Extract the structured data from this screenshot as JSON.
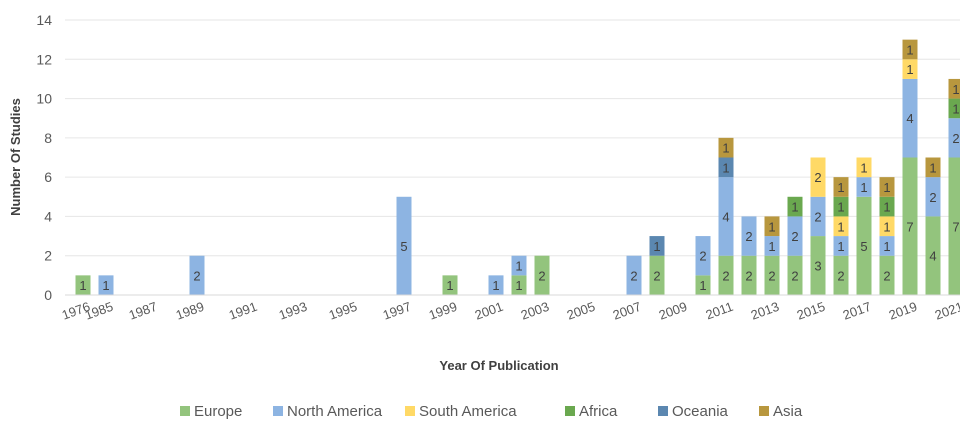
{
  "chart_data": {
    "type": "bar",
    "stacked": true,
    "title": "",
    "xlabel": "Year Of Publication",
    "ylabel": "Number Of Studies",
    "ylim": [
      0,
      14
    ],
    "yticks": [
      0,
      2,
      4,
      6,
      8,
      10,
      12,
      14
    ],
    "grid": true,
    "legend_position": "bottom",
    "categories": [
      "1976",
      "1985",
      "1987",
      "1989",
      "1991",
      "1993",
      "1995",
      "1997",
      "1999",
      "2001",
      "2002",
      "2003",
      "2005",
      "2007",
      "2008",
      "2009",
      "2010",
      "2011",
      "2012",
      "2013",
      "2014",
      "2015",
      "2016",
      "2017",
      "2018",
      "2019",
      "2020",
      "2021"
    ],
    "x_tick_labels": [
      "1976",
      "1985",
      "1987",
      "1989",
      "1991",
      "1993",
      "1995",
      "1997",
      "1999",
      "2001",
      "2003",
      "2005",
      "2007",
      "2009",
      "2011",
      "2013",
      "2015",
      "2017",
      "2019",
      "2021"
    ],
    "series": [
      {
        "name": "Europe",
        "color": "#93c47d",
        "values": [
          1,
          0,
          0,
          0,
          0,
          0,
          0,
          0,
          1,
          0,
          1,
          2,
          0,
          0,
          2,
          0,
          1,
          2,
          2,
          2,
          2,
          3,
          2,
          5,
          2,
          7,
          4,
          7
        ]
      },
      {
        "name": "North America",
        "color": "#8db4e2",
        "values": [
          0,
          1,
          0,
          2,
          0,
          0,
          0,
          5,
          0,
          1,
          1,
          0,
          0,
          2,
          0,
          0,
          2,
          4,
          2,
          1,
          2,
          2,
          1,
          1,
          1,
          4,
          2,
          2
        ]
      },
      {
        "name": "South America",
        "color": "#ffd966",
        "values": [
          0,
          0,
          0,
          0,
          0,
          0,
          0,
          0,
          0,
          0,
          0,
          0,
          0,
          0,
          0,
          0,
          0,
          0,
          0,
          0,
          0,
          2,
          1,
          1,
          1,
          1,
          0,
          0
        ]
      },
      {
        "name": "Africa",
        "color": "#6aa84f",
        "values": [
          0,
          0,
          0,
          0,
          0,
          0,
          0,
          0,
          0,
          0,
          0,
          0,
          0,
          0,
          0,
          0,
          0,
          0,
          0,
          0,
          1,
          0,
          1,
          0,
          1,
          0,
          0,
          1
        ]
      },
      {
        "name": "Oceania",
        "color": "#5b87b0",
        "values": [
          0,
          0,
          0,
          0,
          0,
          0,
          0,
          0,
          0,
          0,
          0,
          0,
          0,
          0,
          1,
          0,
          0,
          1,
          0,
          0,
          0,
          0,
          0,
          0,
          0,
          0,
          0,
          0
        ]
      },
      {
        "name": "Asia",
        "color": "#b8973e",
        "values": [
          0,
          0,
          0,
          0,
          0,
          0,
          0,
          0,
          0,
          0,
          0,
          0,
          0,
          0,
          0,
          0,
          0,
          1,
          0,
          1,
          0,
          0,
          1,
          0,
          1,
          1,
          1,
          1
        ]
      }
    ]
  }
}
